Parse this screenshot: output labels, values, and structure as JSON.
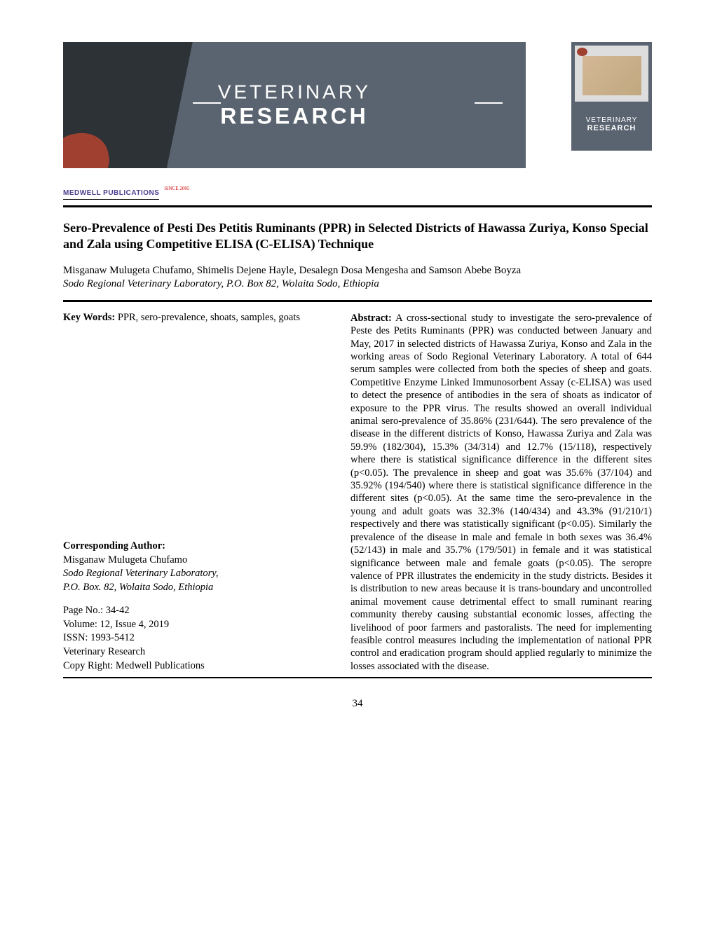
{
  "banner": {
    "text_top": "VETERINARY",
    "text_bottom": "RESEARCH"
  },
  "cover": {
    "text_top": "VETERINARY",
    "text_bottom": "RESEARCH"
  },
  "publisher": {
    "name": "MEDWELL PUBLICATIONS",
    "since": "SINCE 2005"
  },
  "title": "Sero-Prevalence of Pesti Des Petitis Ruminants (PPR) in Selected Districts of Hawassa Zuriya, Konso Special  and Zala using Competitive ELISA (C-ELISA) Technique",
  "authors": "Misganaw Mulugeta Chufamo, Shimelis Dejene Hayle, Desalegn Dosa Mengesha and Samson Abebe Boyza",
  "affiliation": "Sodo Regional Veterinary Laboratory, P.O. Box 82, Wolaita Sodo, Ethiopia",
  "keywords": {
    "label": "Key Words: ",
    "text": "PPR, sero-prevalence, shoats, samples, goats"
  },
  "corresponding": {
    "label": "Corresponding Author:",
    "name": "Misganaw Mulugeta Chufamo",
    "affiliation_line1": "Sodo Regional Veterinary Laboratory,",
    "affiliation_line2": "P.O. Box. 82,  Wolaita Sodo, Ethiopia"
  },
  "pub_info": {
    "pages": "Page No.: 34-42",
    "volume": "Volume: 12, Issue 4, 2019",
    "issn": "ISSN: 1993-5412",
    "journal": "Veterinary Research",
    "copyright": "Copy Right: Medwell Publications"
  },
  "abstract": {
    "label": "Abstract:",
    "text": " A cross-sectional study to investigate the sero-prevalence of Peste des Petits Ruminants (PPR) was conducted between January and May, 2017 in selected districts of Hawassa Zuriya, Konso and Zala in the working areas of Sodo Regional Veterinary Laboratory. A total of 644 serum samples were collected from both the species of sheep and goats. Competitive Enzyme  Linked  Immunosorbent  Assay  (c-ELISA)  was used to detect the presence of antibodies in the sera of  shoats  as indicator  of  exposure  to  the  PPR  virus.  The   results  showed  an  overall  individual  animal  sero-prevalence of 35.86% (231/644). The sero prevalence of the disease in the different districts of Konso, Hawassa Zuriya and Zala was 59.9% (182/304), 15.3% (34/314) and 12.7% (15/118), respectively where there is statistical significance difference in the different sites (p<0.05). The prevalence in sheep and goat was 35.6% (37/104) and 35.92% (194/540) where there is statistical significance difference in the different sites (p<0.05). At the same time the sero-prevalence in the young and adult goats was 32.3% (140/434) and 43.3% (91/210/1) respectively and there was statistically significant (p<0.05). Similarly the prevalence  of  the  disease  in male  and  female  in  both sexes was 36.4% (52/143) in male and 35.7% (179/501) in female  and it was statistical significance between male and female goats (p<0.05). The seropre valence of PPR illustrates  the  endemicity  in  the  study  districts. Besides  it  is  distribution  to  new  areas  because  it  is trans-boundary  and  uncontrolled  animal  movement cause  detrimental  effect  to  small  ruminant  rearing community thereby causing substantial economic losses, affecting    the    livelihood       of       poor       farmers       and pastoralists.    The    need   for    implementing    feasible control   measures   including  the  implementation  of national  PPR  control  and eradication   program   should applied  regularly  to minimize the losses associated with the disease."
  },
  "page_number": "34"
}
